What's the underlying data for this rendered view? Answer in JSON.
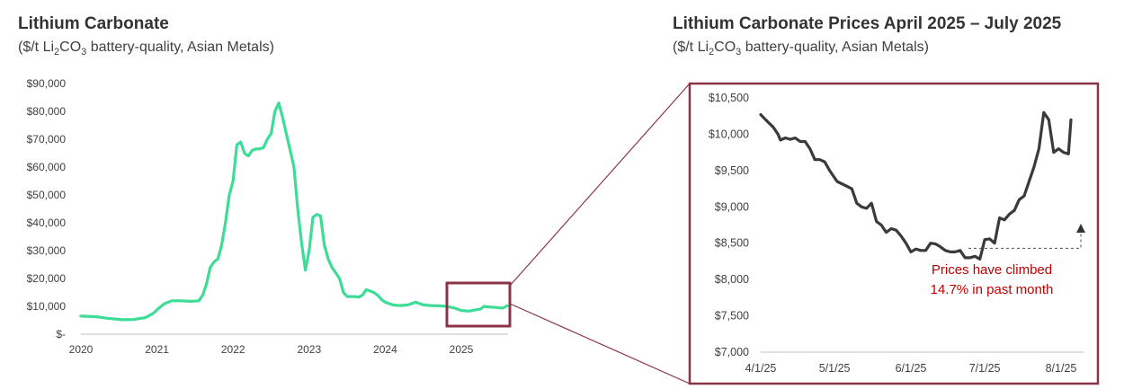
{
  "left_chart": {
    "title": "Lithium Carbonate",
    "subtitle_pre": "($/t Li",
    "subtitle_sub1": "2",
    "subtitle_mid": "CO",
    "subtitle_sub2": "3",
    "subtitle_post": " battery-quality, Asian Metals)"
  },
  "right_chart": {
    "title": "Lithium Carbonate Prices April 2025 – July 2025",
    "subtitle_pre": "($/t Li",
    "subtitle_sub1": "2",
    "subtitle_mid": "CO",
    "subtitle_sub2": "3",
    "subtitle_post": " battery-quality, Asian Metals)",
    "annotation_line1": "Prices have climbed",
    "annotation_line2": "14.7% in past month"
  },
  "colors": {
    "left_line": "#3ddc97",
    "right_line": "#3a3a3a",
    "zoom_box": "#8b3447",
    "annotation": "#c00000"
  },
  "chart_data": [
    {
      "type": "line",
      "title": "Lithium Carbonate",
      "subtitle": "($/t Li2CO3 battery-quality, Asian Metals)",
      "ylim": [
        0,
        90000
      ],
      "y_ticks": [
        0,
        10000,
        20000,
        30000,
        40000,
        50000,
        60000,
        70000,
        80000,
        90000
      ],
      "y_tick_labels": [
        "$-",
        "$10,000",
        "$20,000",
        "$30,000",
        "$40,000",
        "$50,000",
        "$60,000",
        "$70,000",
        "$80,000",
        "$90,000"
      ],
      "xlim": [
        2020,
        2025.65
      ],
      "x_ticks": [
        2020,
        2021,
        2022,
        2023,
        2024,
        2025
      ],
      "x_tick_labels": [
        "2020",
        "2021",
        "2022",
        "2023",
        "2024",
        "2025"
      ],
      "series": [
        {
          "x": [
            2020.0,
            2020.2,
            2020.35,
            2020.55,
            2020.7,
            2020.85,
            2020.95,
            2021.03,
            2021.1,
            2021.2,
            2021.3,
            2021.45,
            2021.55,
            2021.6,
            2021.65,
            2021.7,
            2021.75,
            2021.8,
            2021.85,
            2021.9,
            2021.95,
            2022.0,
            2022.05,
            2022.1,
            2022.15,
            2022.2,
            2022.25,
            2022.3,
            2022.35,
            2022.4,
            2022.45,
            2022.5,
            2022.55,
            2022.6,
            2022.65,
            2022.7,
            2022.75,
            2022.8,
            2022.85,
            2022.9,
            2022.95,
            2023.0,
            2023.05,
            2023.1,
            2023.15,
            2023.2,
            2023.25,
            2023.3,
            2023.35,
            2023.4,
            2023.45,
            2023.5,
            2023.55,
            2023.6,
            2023.65,
            2023.7,
            2023.75,
            2023.8,
            2023.85,
            2023.9,
            2023.95,
            2024.0,
            2024.05,
            2024.1,
            2024.15,
            2024.2,
            2024.3,
            2024.4,
            2024.5,
            2024.6,
            2024.7,
            2024.8,
            2024.9,
            2025.0,
            2025.1,
            2025.2,
            2025.25,
            2025.3,
            2025.35,
            2025.4,
            2025.45,
            2025.5,
            2025.55,
            2025.6
          ],
          "y": [
            6500,
            6300,
            5700,
            5200,
            5300,
            6000,
            7500,
            9500,
            11000,
            12000,
            12000,
            11800,
            12000,
            14000,
            18000,
            24000,
            26000,
            27000,
            32000,
            40000,
            50000,
            55000,
            68000,
            69000,
            65000,
            64000,
            66000,
            66500,
            66500,
            67000,
            70000,
            72000,
            80000,
            83000,
            78000,
            72000,
            66000,
            60000,
            45000,
            33000,
            23000,
            30000,
            42000,
            43000,
            42500,
            32000,
            27000,
            24000,
            22000,
            20000,
            15000,
            13500,
            13500,
            13500,
            13300,
            14000,
            16000,
            15500,
            15000,
            14000,
            12500,
            11500,
            11000,
            10500,
            10400,
            10300,
            10500,
            11500,
            10500,
            10300,
            10200,
            10000,
            9500,
            8500,
            8300,
            8800,
            9000,
            10000,
            9800,
            9700,
            9600,
            9500,
            9400,
            10200
          ]
        }
      ]
    },
    {
      "type": "line",
      "title": "Lithium Carbonate Prices April 2025 – July 2025",
      "subtitle": "($/t Li2CO3 battery-quality, Asian Metals)",
      "ylim": [
        7000,
        10500
      ],
      "y_ticks": [
        7000,
        7500,
        8000,
        8500,
        9000,
        9500,
        10000,
        10500
      ],
      "y_tick_labels": [
        "$7,000",
        "$7,500",
        "$8,000",
        "$8,500",
        "$9,000",
        "$9,500",
        "$10,000",
        "$10,500"
      ],
      "x_ticks": [
        "4/1/25",
        "5/1/25",
        "6/1/25",
        "7/1/25",
        "8/1/25"
      ],
      "x_tick_labels": [
        "4/1/25",
        "5/1/25",
        "6/1/25",
        "7/1/25",
        "8/1/25"
      ],
      "series": [
        {
          "x": [
            "2025-04-01",
            "2025-04-03",
            "2025-04-06",
            "2025-04-08",
            "2025-04-09",
            "2025-04-11",
            "2025-04-13",
            "2025-04-15",
            "2025-04-17",
            "2025-04-19",
            "2025-04-21",
            "2025-04-23",
            "2025-04-25",
            "2025-04-27",
            "2025-04-29",
            "2025-05-02",
            "2025-05-05",
            "2025-05-08",
            "2025-05-10",
            "2025-05-12",
            "2025-05-14",
            "2025-05-16",
            "2025-05-18",
            "2025-05-20",
            "2025-05-22",
            "2025-05-24",
            "2025-05-26",
            "2025-05-28",
            "2025-05-30",
            "2025-06-01",
            "2025-06-03",
            "2025-06-05",
            "2025-06-07",
            "2025-06-09",
            "2025-06-11",
            "2025-06-13",
            "2025-06-15",
            "2025-06-17",
            "2025-06-19",
            "2025-06-21",
            "2025-06-23",
            "2025-06-25",
            "2025-06-27",
            "2025-06-29",
            "2025-07-01",
            "2025-07-03",
            "2025-07-05",
            "2025-07-07",
            "2025-07-09",
            "2025-07-11",
            "2025-07-13",
            "2025-07-15",
            "2025-07-17",
            "2025-07-19",
            "2025-07-21",
            "2025-07-23",
            "2025-07-25",
            "2025-07-27",
            "2025-07-29",
            "2025-07-31",
            "2025-08-02",
            "2025-08-04",
            "2025-08-05"
          ],
          "y": [
            10270,
            10200,
            10100,
            10000,
            9920,
            9950,
            9930,
            9950,
            9900,
            9900,
            9800,
            9650,
            9650,
            9620,
            9500,
            9350,
            9300,
            9250,
            9050,
            9000,
            8980,
            9050,
            8800,
            8750,
            8650,
            8700,
            8680,
            8600,
            8500,
            8380,
            8420,
            8400,
            8400,
            8500,
            8490,
            8450,
            8400,
            8380,
            8380,
            8400,
            8300,
            8300,
            8320,
            8280,
            8550,
            8560,
            8500,
            8850,
            8820,
            8900,
            8950,
            9100,
            9150,
            9350,
            9550,
            9800,
            10300,
            10200,
            9750,
            9800,
            9750,
            9730,
            10200
          ]
        }
      ]
    }
  ]
}
